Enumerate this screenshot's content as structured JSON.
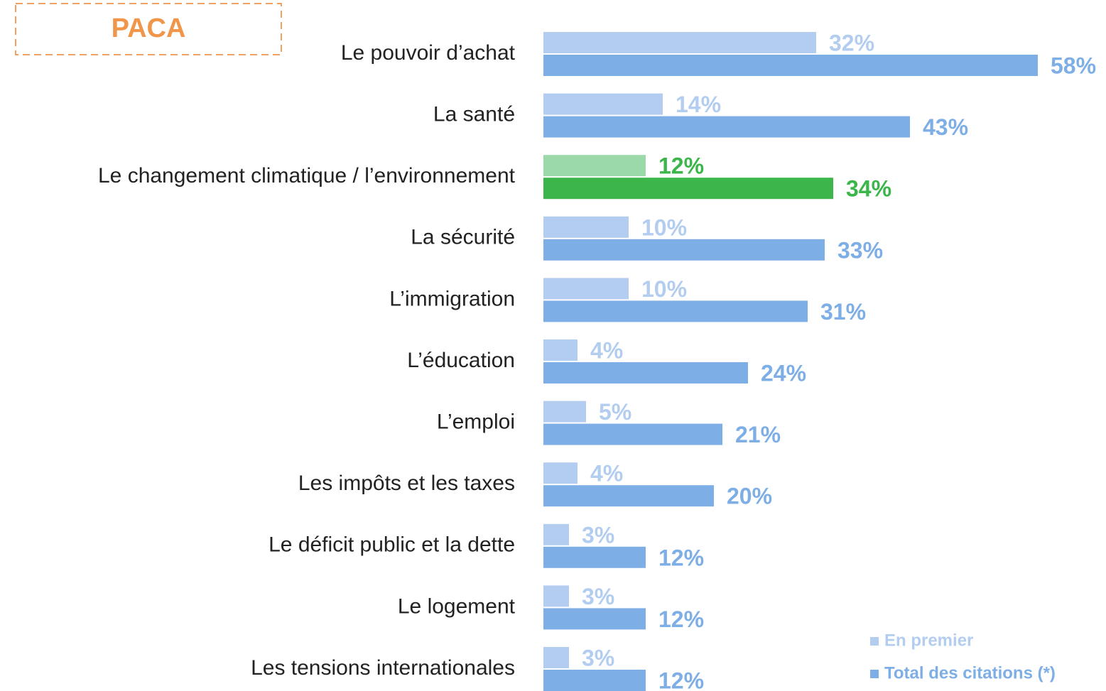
{
  "chart_data": {
    "type": "hbar",
    "title": "PACA",
    "categories": [
      "Le pouvoir d’achat",
      "La santé",
      "Le changement climatique / l’environnement",
      "La sécurité",
      "L’immigration",
      "L’éducation",
      "L’emploi",
      "Les impôts et les taxes",
      "Le déficit public et la dette",
      "Le logement",
      "Les tensions internationales"
    ],
    "xlim": [
      0,
      60
    ],
    "legend": "bottom-right",
    "series": [
      {
        "name": "En premier",
        "color": "#b3cdf0",
        "colors": [
          "#b3cdf0",
          "#b3cdf0",
          "#9bdaa8",
          "#b3cdf0",
          "#b3cdf0",
          "#b3cdf0",
          "#b3cdf0",
          "#b3cdf0",
          "#b3cdf0",
          "#b3cdf0",
          "#b3cdf0"
        ],
        "label_colors": [
          "#b3cdf0",
          "#b3cdf0",
          "#3cb54a",
          "#b3cdf0",
          "#b3cdf0",
          "#b3cdf0",
          "#b3cdf0",
          "#b3cdf0",
          "#b3cdf0",
          "#b3cdf0",
          "#b3cdf0"
        ],
        "values": [
          32,
          14,
          12,
          10,
          10,
          4,
          5,
          4,
          3,
          3,
          3
        ],
        "value_labels": [
          "32%",
          "14%",
          "12%",
          "10%",
          "10%",
          "4%",
          "5%",
          "4%",
          "3%",
          "3%",
          "3%"
        ]
      },
      {
        "name": "Total des citations (*)",
        "color": "#7eaee6",
        "colors": [
          "#7eaee6",
          "#7eaee6",
          "#3cb54a",
          "#7eaee6",
          "#7eaee6",
          "#7eaee6",
          "#7eaee6",
          "#7eaee6",
          "#7eaee6",
          "#7eaee6",
          "#7eaee6"
        ],
        "label_colors": [
          "#7eaee6",
          "#7eaee6",
          "#3cb54a",
          "#7eaee6",
          "#7eaee6",
          "#7eaee6",
          "#7eaee6",
          "#7eaee6",
          "#7eaee6",
          "#7eaee6",
          "#7eaee6"
        ],
        "values": [
          58,
          43,
          34,
          33,
          31,
          24,
          21,
          20,
          12,
          12,
          12
        ],
        "value_labels": [
          "58%",
          "43%",
          "34%",
          "33%",
          "31%",
          "24%",
          "21%",
          "20%",
          "12%",
          "12%",
          "12%"
        ]
      }
    ]
  }
}
